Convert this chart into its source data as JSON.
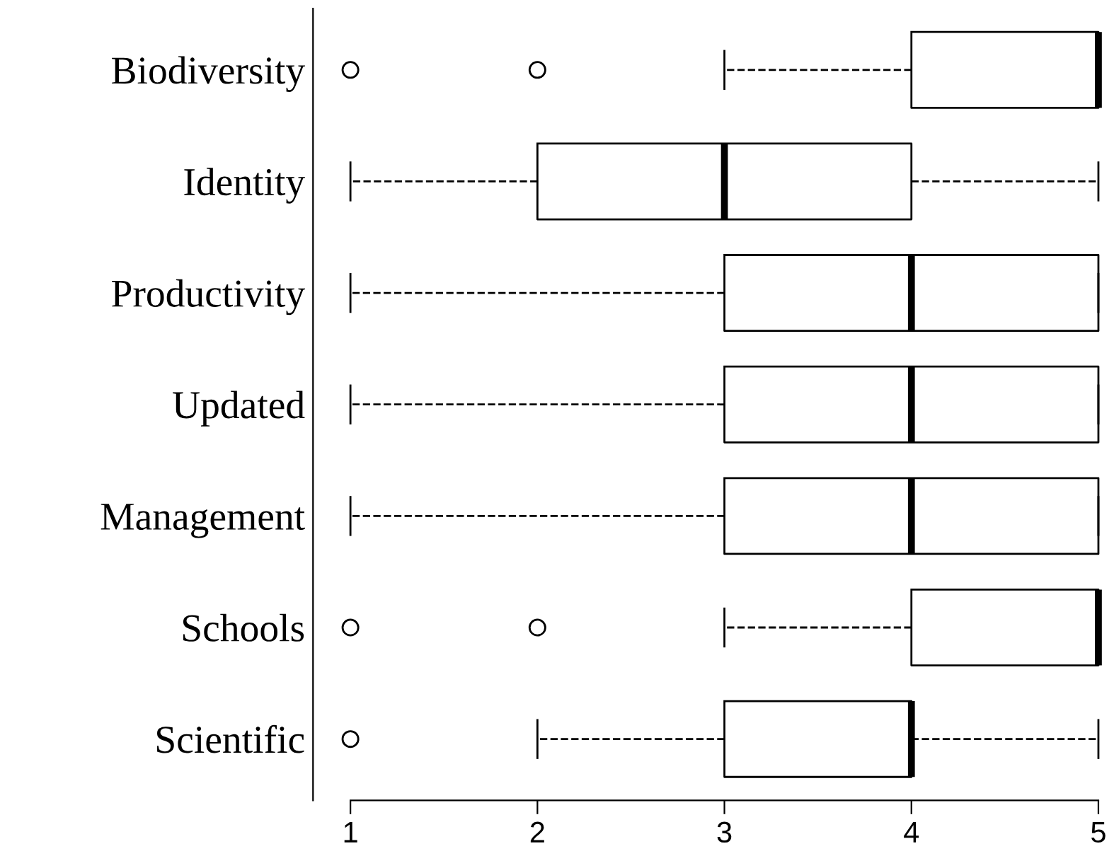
{
  "chart_data": {
    "type": "box",
    "orientation": "horizontal",
    "categories": [
      "Biodiversity",
      "Identity",
      "Productivity",
      "Updated",
      "Management",
      "Schools",
      "Scientific"
    ],
    "boxes": [
      {
        "low": 3,
        "q1": 4,
        "median": 5,
        "q3": 5,
        "high": 5,
        "outliers": [
          1,
          2
        ]
      },
      {
        "low": 1,
        "q1": 2,
        "median": 3,
        "q3": 4,
        "high": 5
      },
      {
        "low": 1,
        "q1": 3,
        "median": 4,
        "q3": 5,
        "high": 5
      },
      {
        "low": 1,
        "q1": 3,
        "median": 4,
        "q3": 5,
        "high": 5
      },
      {
        "low": 1,
        "q1": 3,
        "median": 4,
        "q3": 5,
        "high": 5
      },
      {
        "low": 3,
        "q1": 4,
        "median": 5,
        "q3": 5,
        "high": 5,
        "outliers": [
          1,
          2
        ]
      },
      {
        "low": 2,
        "q1": 3,
        "median": 4,
        "q3": 4,
        "high": 5,
        "outliers": [
          1
        ]
      }
    ],
    "xlim": [
      0.8,
      5
    ],
    "xticks": [
      1,
      2,
      3,
      4,
      5
    ],
    "grid": false,
    "line_style": "dashed"
  }
}
